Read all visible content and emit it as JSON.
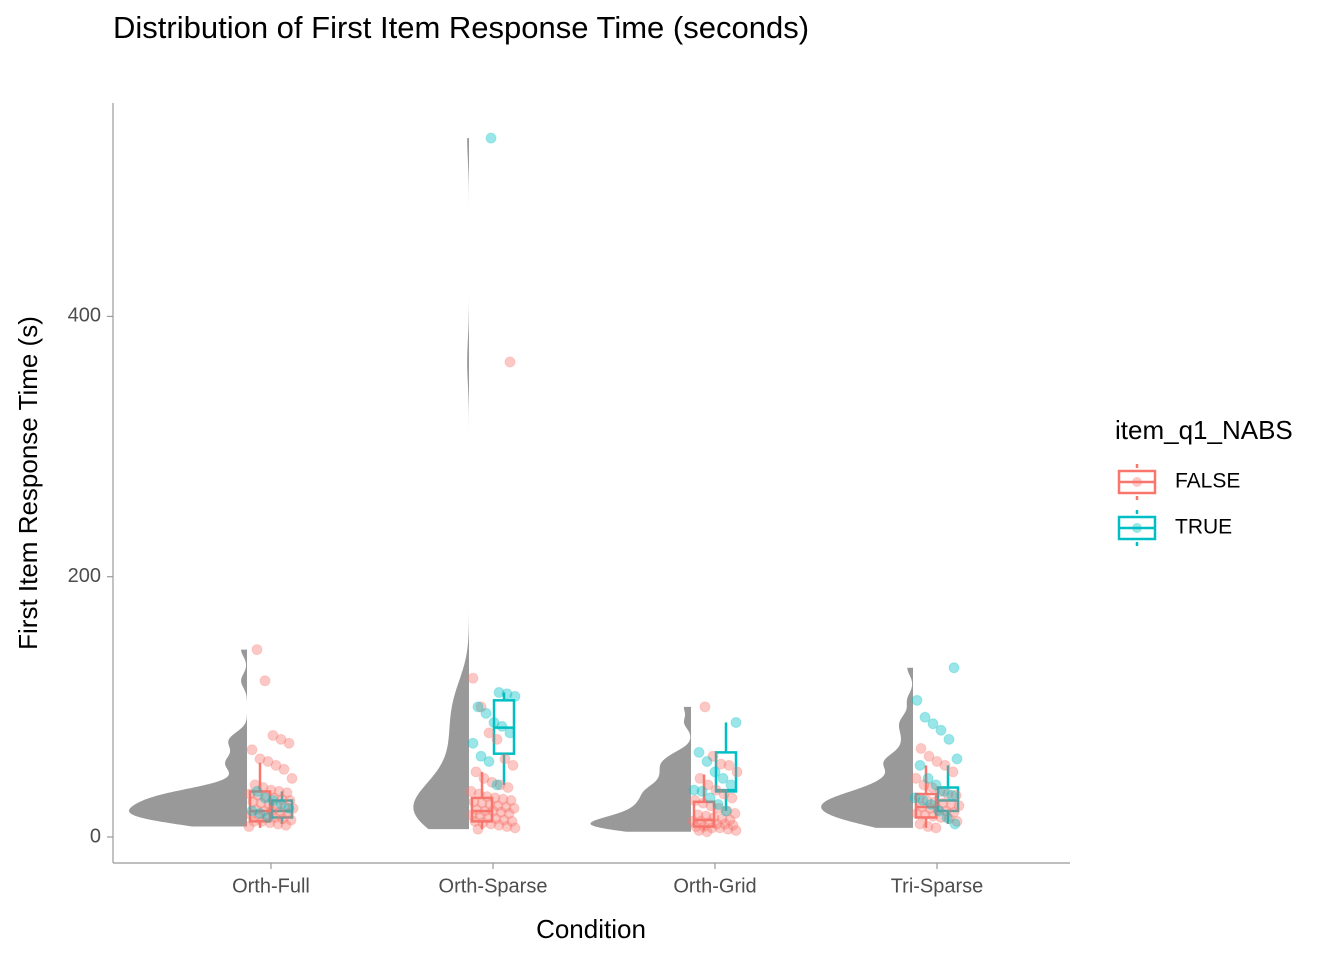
{
  "chart_data": {
    "type": "raincloud",
    "title": "Distribution of First Item Response Time (seconds)",
    "x_label": "Condition",
    "y_label": "First Item Response Time (s)",
    "legend_title": "item_q1_NABS",
    "categories": [
      "Orth-Full",
      "Orth-Sparse",
      "Orth-Grid",
      "Tri-Sparse"
    ],
    "ylim": [
      -20,
      564
    ],
    "yticks": [
      0,
      200,
      400
    ],
    "violin_color": "#999999",
    "series": [
      {
        "name": "FALSE",
        "color": "#F8766D",
        "boxes": [
          {
            "min": 7,
            "q1": 12,
            "median": 20,
            "q3": 35,
            "max": 57
          },
          {
            "min": 6,
            "q1": 12,
            "median": 20,
            "q3": 30,
            "max": 50
          },
          {
            "min": 5,
            "q1": 8,
            "median": 13,
            "q3": 27,
            "max": 48
          },
          {
            "min": 7,
            "q1": 15,
            "median": 23,
            "q3": 33,
            "max": 55
          }
        ],
        "points": [
          [
            8,
            9,
            10,
            11,
            12,
            12,
            13,
            14,
            15,
            15,
            16,
            17,
            18,
            19,
            20,
            20,
            21,
            22,
            23,
            24,
            25,
            26,
            27,
            28,
            29,
            30,
            31,
            32,
            33,
            34,
            35,
            36,
            38,
            40,
            45,
            52,
            55,
            58,
            60,
            67,
            72,
            75,
            78,
            120,
            144
          ],
          [
            6,
            7,
            8,
            9,
            10,
            11,
            12,
            12,
            13,
            14,
            15,
            16,
            17,
            18,
            19,
            20,
            20,
            21,
            22,
            23,
            24,
            25,
            26,
            27,
            28,
            29,
            30,
            31,
            33,
            35,
            38,
            40,
            42,
            45,
            50,
            55,
            60,
            75,
            80,
            100,
            122,
            365
          ],
          [
            4,
            5,
            5,
            6,
            7,
            7,
            8,
            8,
            9,
            10,
            10,
            11,
            12,
            12,
            13,
            14,
            15,
            16,
            17,
            18,
            20,
            22,
            24,
            26,
            28,
            30,
            33,
            36,
            40,
            45,
            50,
            55,
            56,
            62,
            100
          ],
          [
            7,
            8,
            10,
            12,
            14,
            15,
            16,
            17,
            18,
            19,
            20,
            21,
            22,
            23,
            24,
            25,
            26,
            27,
            28,
            30,
            32,
            33,
            35,
            38,
            40,
            45,
            50,
            55,
            58,
            62,
            68
          ]
        ]
      },
      {
        "name": "TRUE",
        "color": "#00BFC4",
        "boxes": [
          {
            "min": 10,
            "q1": 15,
            "median": 20,
            "q3": 28,
            "max": 35
          },
          {
            "min": 40,
            "q1": 64,
            "median": 84,
            "q3": 105,
            "max": 111
          },
          {
            "min": 20,
            "q1": 35,
            "median": 36,
            "q3": 65,
            "max": 88
          },
          {
            "min": 10,
            "q1": 20,
            "median": 28,
            "q3": 38,
            "max": 55
          }
        ],
        "points": [
          [
            15,
            18,
            20,
            22,
            25,
            28,
            30,
            35
          ],
          [
            40,
            58,
            62,
            72,
            80,
            85,
            88,
            95,
            100,
            108,
            110,
            111,
            537
          ],
          [
            20,
            25,
            30,
            35,
            36,
            40,
            45,
            50,
            58,
            65,
            88
          ],
          [
            10,
            15,
            20,
            25,
            28,
            30,
            32,
            35,
            40,
            45,
            55,
            60,
            75,
            82,
            87,
            92,
            105,
            130
          ]
        ]
      }
    ]
  }
}
